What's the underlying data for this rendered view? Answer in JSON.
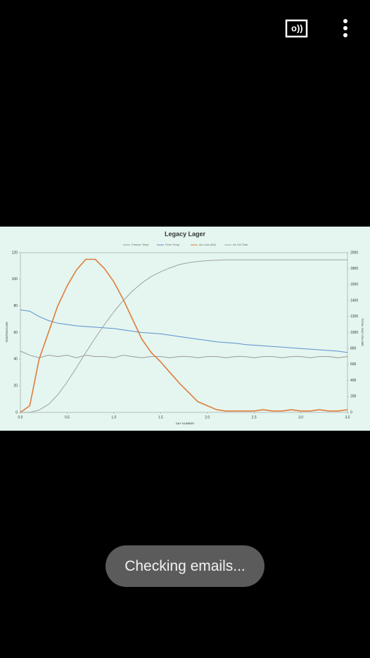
{
  "toast": "Checking emails...",
  "chart_data": {
    "type": "line",
    "title": "Legacy Lager",
    "x_label": "DAY NUMBER",
    "y_label": "TEMPERATURE",
    "y2_label": "TOTAL GAS VOLUME",
    "x": [
      0,
      0.1,
      0.2,
      0.3,
      0.4,
      0.5,
      0.6,
      0.7,
      0.8,
      0.9,
      1,
      1.1,
      1.2,
      1.3,
      1.4,
      1.5,
      1.6,
      1.7,
      1.8,
      1.9,
      2,
      2.1,
      2.2,
      2.3,
      2.4,
      2.5,
      2.6,
      2.7,
      2.8,
      2.9,
      3,
      3.1,
      3.2,
      3.3,
      3.4,
      3.5
    ],
    "xlim": [
      0,
      3.5
    ],
    "xticks": [
      {
        "value": 0,
        "label": "0.0"
      },
      0.5,
      {
        "value": 1,
        "label": "1.0"
      },
      1.5,
      {
        "value": 2,
        "label": "2.0"
      },
      2.5,
      {
        "value": 3,
        "label": "3.0"
      },
      3.5
    ],
    "ylim": [
      0,
      120
    ],
    "yticks": [
      0,
      20,
      40,
      60,
      80,
      100,
      120
    ],
    "y2lim": [
      0,
      2000
    ],
    "y2ticks": [
      0,
      200,
      400,
      600,
      800,
      1000,
      1200,
      1400,
      1600,
      1800,
      2000
    ],
    "series": [
      {
        "name": "Freezer Temp",
        "color": "#9a9a9a",
        "values": [
          46,
          43,
          41,
          43,
          42,
          43,
          41,
          43,
          42,
          42,
          41,
          43,
          42,
          41,
          42,
          42,
          41,
          42,
          42,
          41,
          42,
          42,
          41,
          42,
          42,
          41,
          42,
          42,
          41,
          42,
          42,
          41,
          42,
          42,
          41,
          42
        ]
      },
      {
        "name": "Ferm Temp",
        "color": "#5b8fd0",
        "values": [
          77,
          76,
          72,
          69,
          67,
          66,
          65,
          64.5,
          64,
          63.5,
          63,
          62,
          61,
          60,
          59.5,
          59,
          58,
          57,
          56,
          55,
          54,
          53,
          52.5,
          52,
          51,
          50.5,
          50,
          49.5,
          49,
          48.5,
          48,
          47.5,
          47,
          46.5,
          46,
          45
        ]
      },
      {
        "name": "Air Lock (kW)",
        "color": "#e07b3c",
        "values": [
          0,
          5,
          40,
          60,
          80,
          95,
          107,
          115,
          115,
          108,
          98,
          85,
          70,
          55,
          45,
          38,
          30,
          22,
          15,
          8,
          5,
          2,
          1,
          1,
          1,
          1,
          2,
          1,
          1,
          2,
          1,
          1,
          2,
          1,
          1,
          2
        ]
      },
      {
        "name": "Air Vol Total",
        "color": "#a0a0a0",
        "axis": "y2",
        "values": [
          0,
          0,
          30,
          100,
          220,
          380,
          560,
          750,
          930,
          1100,
          1260,
          1400,
          1520,
          1620,
          1700,
          1760,
          1810,
          1850,
          1875,
          1890,
          1900,
          1905,
          1910,
          1910,
          1910,
          1910,
          1910,
          1910,
          1910,
          1910,
          1910,
          1910,
          1910,
          1910,
          1910,
          1910
        ]
      }
    ]
  }
}
